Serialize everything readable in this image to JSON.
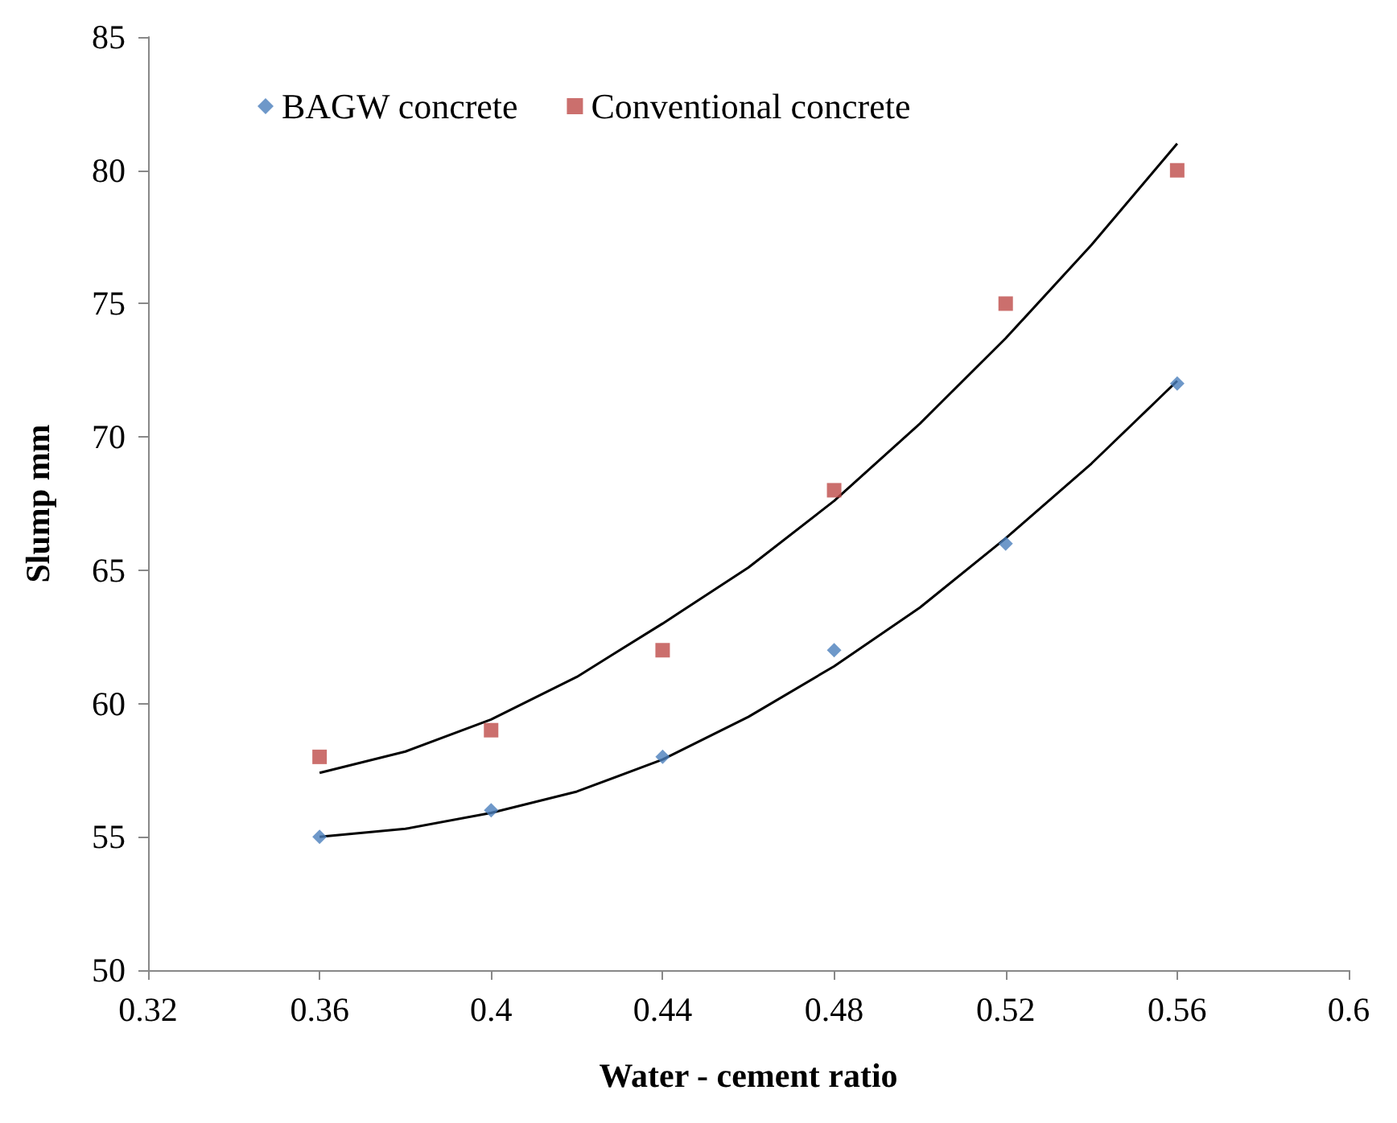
{
  "chart_data": {
    "type": "scatter",
    "xlabel": "Water - cement ratio",
    "ylabel": "Slump mm",
    "x": [
      0.36,
      0.4,
      0.44,
      0.48,
      0.52,
      0.56
    ],
    "series": [
      {
        "name": "BAGW concrete",
        "color": "#4a7ebb",
        "marker": "diamond",
        "values": [
          55,
          56,
          58,
          62,
          66,
          72
        ]
      },
      {
        "name": "Conventional concrete",
        "color": "#be4b48",
        "marker": "square",
        "values": [
          58,
          59,
          62,
          68,
          75,
          80
        ]
      },
      {
        "type": "line",
        "color": "#000000",
        "marker": "none",
        "x": [
          0.36,
          0.38,
          0.4,
          0.42,
          0.44,
          0.46,
          0.48,
          0.5,
          0.52,
          0.54,
          0.56
        ],
        "values": [
          55,
          55.3,
          55.9,
          56.7,
          57.9,
          59.5,
          61.4,
          63.6,
          66.2,
          69,
          72.1
        ]
      },
      {
        "type": "line",
        "color": "#000000",
        "marker": "none",
        "x": [
          0.36,
          0.38,
          0.4,
          0.42,
          0.44,
          0.46,
          0.48,
          0.5,
          0.52,
          0.54,
          0.56
        ],
        "values": [
          57.4,
          58.2,
          59.4,
          61,
          63,
          65.1,
          67.6,
          70.5,
          73.7,
          77.2,
          81
        ]
      }
    ],
    "xlim": [
      0.32,
      0.6
    ],
    "xticks": [
      0.32,
      0.36,
      0.4,
      0.44,
      0.48,
      0.52,
      0.56,
      0.6
    ],
    "ylim": [
      50,
      85
    ],
    "yticks": [
      50,
      55,
      60,
      65,
      70,
      75,
      80,
      85
    ],
    "grid": false,
    "legend": "top left"
  }
}
